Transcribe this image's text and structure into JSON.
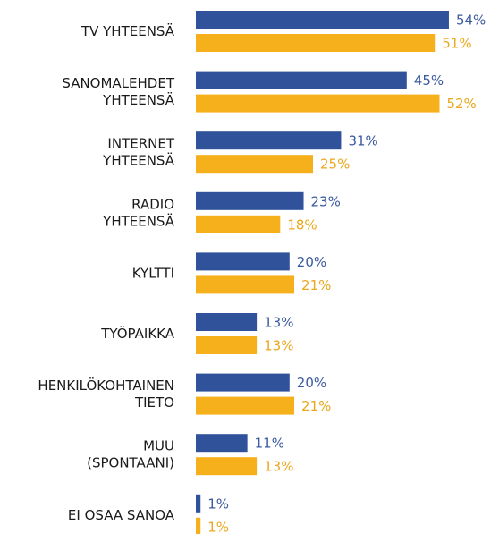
{
  "chart_data": {
    "type": "bar",
    "orientation": "horizontal",
    "categories": [
      "TV YHTEENSÄ",
      "SANOMALEHDET\nYHTEENSÄ",
      "INTERNET\nYHTEENSÄ",
      "RADIO\nYHTEENSÄ",
      "KYLTTI",
      "TYÖPAIKKA",
      "HENKILÖKOHTAINEN\nTIETO",
      "MUU\n(SPONTAANI)",
      "EI OSAA SANOA"
    ],
    "series": [
      {
        "color": "#2f529b",
        "label_color": "#3b5a9f",
        "values": [
          54,
          45,
          31,
          23,
          20,
          13,
          20,
          11,
          1
        ],
        "value_labels": [
          "54%",
          "45%",
          "31%",
          "23%",
          "20%",
          "13%",
          "20%",
          "11%",
          "1%"
        ]
      },
      {
        "color": "#f5b01c",
        "label_color": "#eaa81d",
        "values": [
          51,
          52,
          25,
          18,
          21,
          13,
          21,
          13,
          1
        ],
        "value_labels": [
          "51%",
          "52%",
          "25%",
          "18%",
          "21%",
          "13%",
          "21%",
          "13%",
          "1%"
        ]
      }
    ]
  }
}
